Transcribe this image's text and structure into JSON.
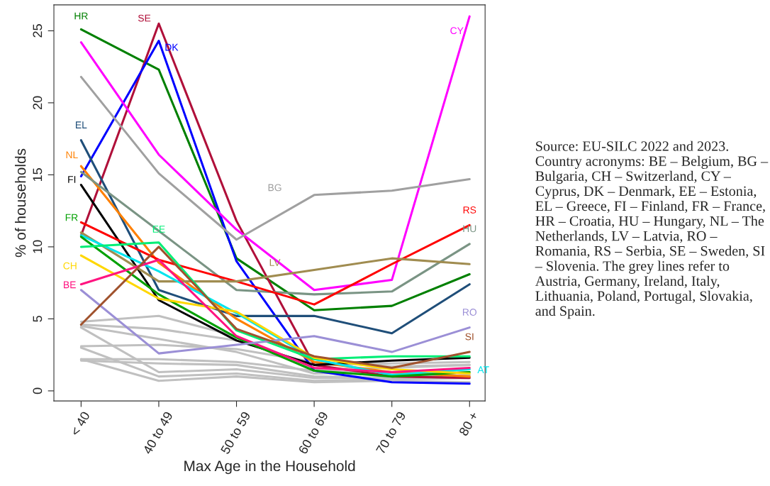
{
  "chart_data": {
    "type": "line",
    "xlabel": "Max Age in the Household",
    "ylabel": "% of households",
    "categories": [
      "< 40",
      "40 to 49",
      "50 to 59",
      "60 to 69",
      "70 to 79",
      "80 +"
    ],
    "ylim": [
      -0.7,
      26.8
    ],
    "yticks": [
      0,
      5,
      10,
      15,
      20,
      25
    ],
    "grid": false,
    "legend": false,
    "marker": "none",
    "line_style": "solid",
    "series": [
      {
        "color": "#c0c0c0",
        "values": [
          4.8,
          5.2,
          3.8,
          1.5,
          1.6,
          1.8
        ]
      },
      {
        "color": "#c0c0c0",
        "values": [
          4.6,
          4.3,
          3.5,
          1.8,
          1.9,
          2.0
        ]
      },
      {
        "color": "#c0c0c0",
        "values": [
          4.5,
          3.6,
          2.7,
          1.2,
          1.3,
          1.5
        ]
      },
      {
        "color": "#c0c0c0",
        "values": [
          4.4,
          1.3,
          1.5,
          0.9,
          0.9,
          1.0
        ]
      },
      {
        "color": "#c0c0c0",
        "values": [
          3.1,
          3.2,
          2.9,
          2.0,
          1.7,
          1.8
        ]
      },
      {
        "color": "#c0c0c0",
        "values": [
          3.0,
          1.0,
          1.2,
          0.7,
          0.8,
          0.9
        ]
      },
      {
        "color": "#c0c0c0",
        "values": [
          2.2,
          2.2,
          2.0,
          1.4,
          1.2,
          1.3
        ]
      },
      {
        "color": "#c0c0c0",
        "values": [
          2.2,
          0.7,
          1.0,
          0.6,
          0.7,
          0.6
        ]
      },
      {
        "color": "#c0c0c0",
        "values": [
          2.1,
          1.9,
          1.8,
          1.0,
          0.9,
          1.1
        ]
      },
      {
        "name": "HR",
        "color": "#008000",
        "values": [
          25.1,
          22.3,
          9.2,
          5.6,
          5.9,
          8.1
        ]
      },
      {
        "name": "SE",
        "color": "#b0103a",
        "values": [
          10.8,
          25.5,
          11.8,
          1.8,
          1.0,
          0.9
        ]
      },
      {
        "name": "DK",
        "color": "#0000ff",
        "values": [
          14.9,
          24.3,
          9.0,
          1.4,
          0.6,
          0.5
        ]
      },
      {
        "name": "CY",
        "color": "#ff00ff",
        "values": [
          24.2,
          16.4,
          11.2,
          7.0,
          7.7,
          26.0
        ]
      },
      {
        "name": "BG",
        "color": "#a0a0a0",
        "values": [
          21.8,
          15.1,
          10.5,
          13.6,
          13.9,
          14.7
        ]
      },
      {
        "name": "EL",
        "color": "#1f4e79",
        "values": [
          17.4,
          7.0,
          5.2,
          5.2,
          4.0,
          7.4
        ]
      },
      {
        "name": "NL",
        "color": "#ff8000",
        "values": [
          15.6,
          8.9,
          5.0,
          2.0,
          1.3,
          1.0
        ]
      },
      {
        "name": "FI",
        "color": "#000000",
        "values": [
          14.3,
          6.3,
          3.5,
          1.8,
          2.1,
          2.3
        ]
      },
      {
        "name": "HU",
        "color": "#7a9484",
        "values": [
          15.2,
          11.1,
          7.0,
          6.7,
          6.9,
          10.2
        ]
      },
      {
        "name": "RS",
        "color": "#ff0000",
        "values": [
          11.7,
          9.1,
          7.6,
          6.0,
          8.8,
          11.5
        ]
      },
      {
        "name": "LV",
        "color": "#a08c50",
        "values": [
          11.0,
          7.6,
          7.6,
          8.4,
          9.2,
          8.8
        ]
      },
      {
        "name": "AT",
        "color": "#00e5ee",
        "values": [
          10.8,
          8.3,
          5.4,
          2.2,
          1.1,
          1.5
        ]
      },
      {
        "name": "FR",
        "color": "#00a000",
        "values": [
          10.7,
          6.7,
          3.7,
          1.4,
          1.0,
          1.3
        ]
      },
      {
        "name": "EE",
        "color": "#00ee76",
        "values": [
          10.0,
          10.3,
          4.2,
          2.2,
          2.4,
          2.4
        ]
      },
      {
        "name": "CH",
        "color": "#ffd700",
        "values": [
          9.4,
          6.4,
          5.5,
          2.3,
          1.5,
          1.2
        ]
      },
      {
        "name": "BE",
        "color": "#ff1480",
        "values": [
          7.4,
          9.1,
          3.8,
          1.6,
          1.3,
          1.6
        ]
      },
      {
        "name": "RO",
        "color": "#9b8fd6",
        "values": [
          7.0,
          2.6,
          3.2,
          3.8,
          2.7,
          4.4
        ]
      },
      {
        "name": "SI",
        "color": "#a0522d",
        "values": [
          4.6,
          10.0,
          4.3,
          2.4,
          1.6,
          2.7
        ]
      }
    ],
    "annotations": [
      "Source: EU-SILC 2022 and 2023. Country acronyms: BE – Belgium, BG – Bulgaria, CH – Switzerland, CY – Cyprus, DK – Denmark, EE – Estonia, EL – Greece, FI – Finland, FR – France, HR – Croatia, HU – Hungary, NL – The Netherlands, LV – Latvia, RO – Romania, RS – Serbia, SE – Sweden, SI – Slovenia. The grey lines refer to Austria, Germany, Ireland, Italy, Lithuania, Poland, Portugal, Slovakia, and Spain."
    ]
  }
}
